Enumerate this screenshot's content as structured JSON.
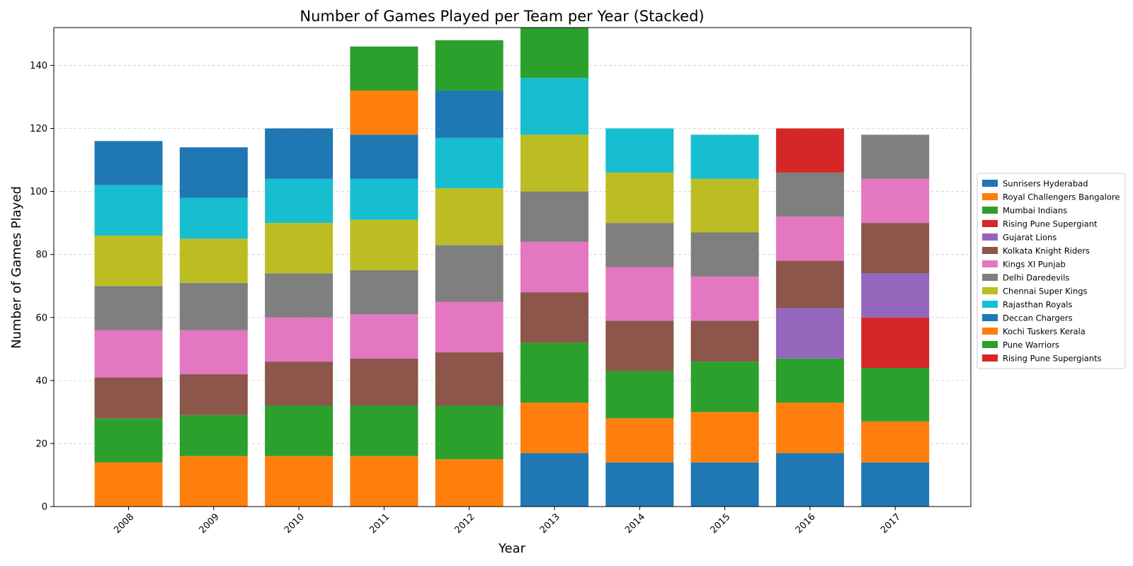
{
  "chart_data": {
    "type": "bar",
    "stacked": true,
    "title": "Number of Games Played per Team per Year (Stacked)",
    "xlabel": "Year",
    "ylabel": "Number of Games Played",
    "categories": [
      "2008",
      "2009",
      "2010",
      "2011",
      "2012",
      "2013",
      "2014",
      "2015",
      "2016",
      "2017"
    ],
    "ylim": [
      0,
      152
    ],
    "yticks": [
      0,
      20,
      40,
      60,
      80,
      100,
      120,
      140
    ],
    "grid": "y-dashed",
    "legend_position": "right",
    "series": [
      {
        "name": "Sunrisers Hyderabad",
        "color": "#1f77b4",
        "values": [
          0,
          0,
          0,
          0,
          0,
          17,
          14,
          14,
          17,
          14
        ]
      },
      {
        "name": "Royal Challengers Bangalore",
        "color": "#ff7f0e",
        "values": [
          14,
          16,
          16,
          16,
          15,
          16,
          14,
          16,
          16,
          13
        ]
      },
      {
        "name": "Mumbai Indians",
        "color": "#2ca02c",
        "values": [
          14,
          13,
          16,
          16,
          17,
          19,
          15,
          16,
          14,
          17
        ]
      },
      {
        "name": "Rising Pune Supergiant",
        "color": "#d62728",
        "values": [
          0,
          0,
          0,
          0,
          0,
          0,
          0,
          0,
          0,
          16
        ]
      },
      {
        "name": "Gujarat Lions",
        "color": "#9467bd",
        "values": [
          0,
          0,
          0,
          0,
          0,
          0,
          0,
          0,
          16,
          14
        ]
      },
      {
        "name": "Kolkata Knight Riders",
        "color": "#8c564b",
        "values": [
          13,
          13,
          14,
          15,
          17,
          16,
          16,
          13,
          15,
          16
        ]
      },
      {
        "name": "Kings XI Punjab",
        "color": "#e377c2",
        "values": [
          15,
          14,
          14,
          14,
          16,
          16,
          17,
          14,
          14,
          14
        ]
      },
      {
        "name": "Delhi Daredevils",
        "color": "#7f7f7f",
        "values": [
          14,
          15,
          14,
          14,
          18,
          16,
          14,
          14,
          14,
          14
        ]
      },
      {
        "name": "Chennai Super Kings",
        "color": "#bcbd22",
        "values": [
          16,
          14,
          16,
          16,
          18,
          18,
          16,
          17,
          0,
          0
        ]
      },
      {
        "name": "Rajasthan Royals",
        "color": "#17becf",
        "values": [
          16,
          13,
          14,
          13,
          16,
          18,
          14,
          14,
          0,
          0
        ]
      },
      {
        "name": "Deccan Chargers",
        "color": "#1f77b4",
        "values": [
          14,
          16,
          16,
          14,
          15,
          0,
          0,
          0,
          0,
          0
        ]
      },
      {
        "name": "Kochi Tuskers Kerala",
        "color": "#ff7f0e",
        "values": [
          0,
          0,
          0,
          14,
          0,
          0,
          0,
          0,
          0,
          0
        ]
      },
      {
        "name": "Pune Warriors",
        "color": "#2ca02c",
        "values": [
          0,
          0,
          0,
          14,
          16,
          16,
          0,
          0,
          0,
          0
        ]
      },
      {
        "name": "Rising Pune Supergiants",
        "color": "#d62728",
        "values": [
          0,
          0,
          0,
          0,
          0,
          0,
          0,
          0,
          14,
          0
        ]
      }
    ]
  }
}
